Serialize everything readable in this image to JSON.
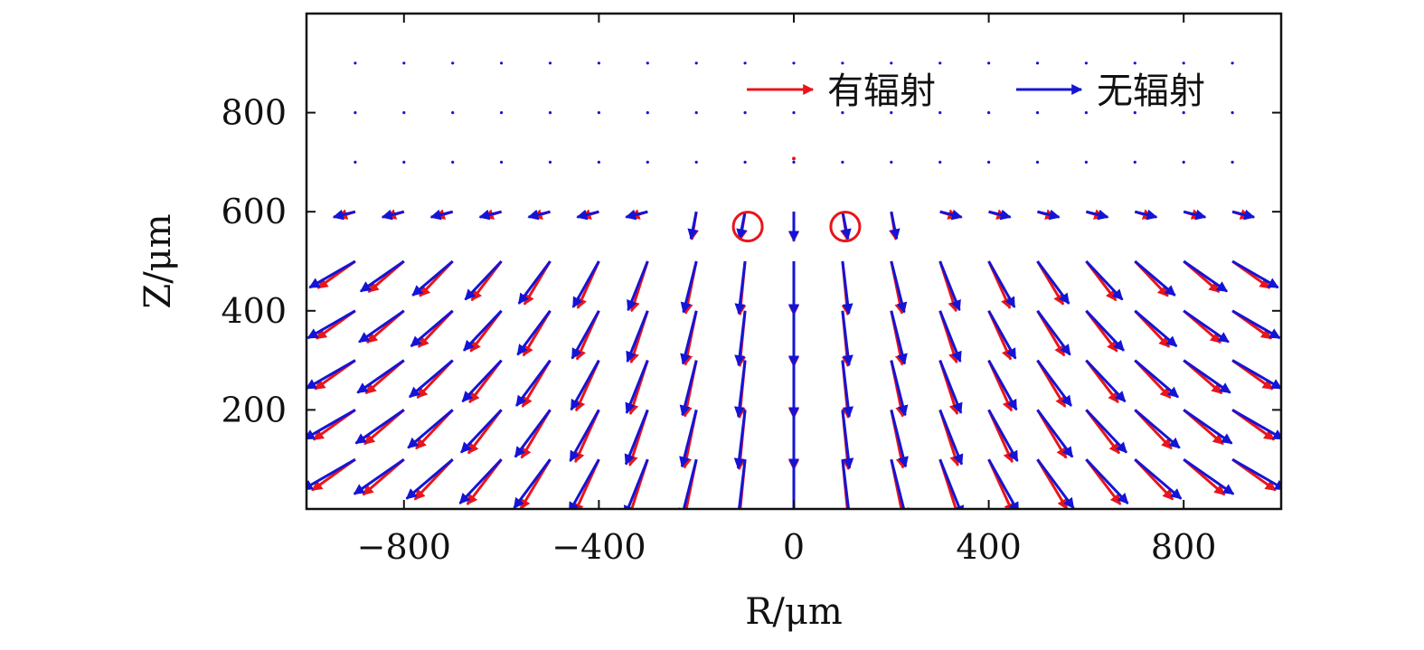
{
  "chart_data": {
    "type": "quiver",
    "xlabel": "R/μm",
    "ylabel": "Z/μm",
    "xlim": [
      -1000,
      1000
    ],
    "ylim": [
      0,
      1000
    ],
    "xticks": [
      {
        "value": -800,
        "label": "−800"
      },
      {
        "value": -400,
        "label": "−400"
      },
      {
        "value": 0,
        "label": "0"
      },
      {
        "value": 400,
        "label": "400"
      },
      {
        "value": 800,
        "label": "800"
      }
    ],
    "yticks": [
      {
        "value": 200,
        "label": "200"
      },
      {
        "value": 400,
        "label": "400"
      },
      {
        "value": 600,
        "label": "600"
      },
      {
        "value": 800,
        "label": "800"
      }
    ],
    "legend": {
      "position": "top-right"
    },
    "grid": false,
    "colors": {
      "with_radiation": "#e8151b",
      "without_radiation": "#1414d6"
    },
    "x_positions": [
      -900,
      -800,
      -700,
      -600,
      -500,
      -400,
      -300,
      -200,
      -100,
      0,
      100,
      200,
      300,
      400,
      500,
      600,
      700,
      800,
      900
    ],
    "z_positions": [
      900,
      800,
      700,
      600,
      500,
      400,
      300,
      200,
      100
    ],
    "series": [
      {
        "name": "有辐射",
        "color": "#e8151b"
      },
      {
        "name": "无辐射",
        "color": "#1414d6"
      }
    ],
    "annotations": [
      {
        "type": "circle",
        "x": -100,
        "y": 570,
        "color": "#e8151b"
      },
      {
        "type": "circle",
        "x": 100,
        "y": 570,
        "color": "#e8151b"
      }
    ]
  }
}
